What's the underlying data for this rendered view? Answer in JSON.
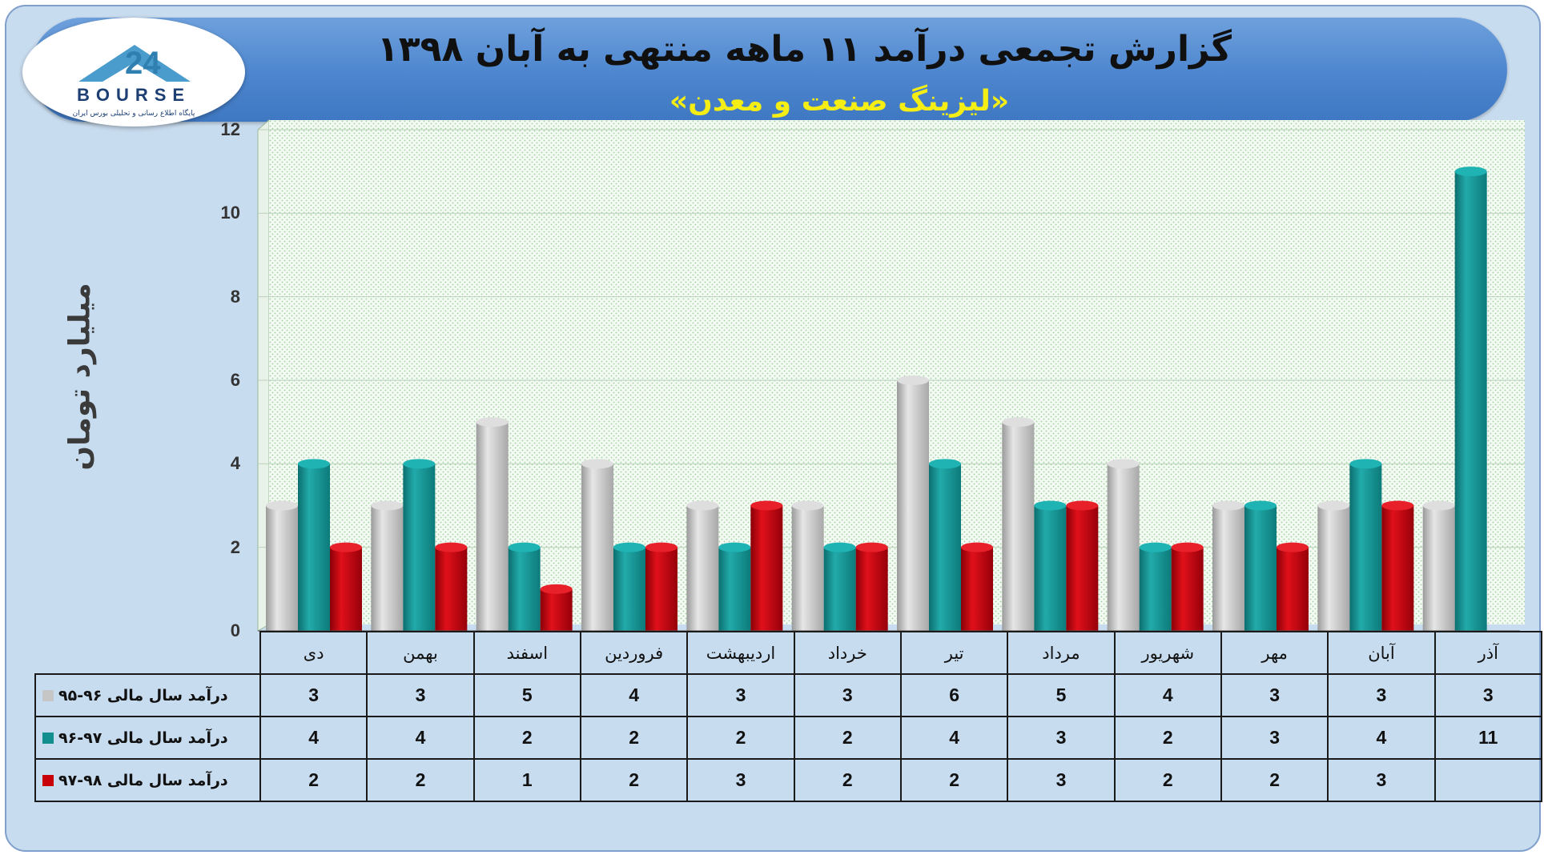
{
  "header": {
    "title": "گزارش تجمعی درآمد ۱۱ ماهه منتهی به آبان ۱۳۹۸",
    "subtitle": "«لیزینگ صنعت و معدن»"
  },
  "logo": {
    "text": "BOURSE",
    "caption": "پایگاه اطلاع رسانی و تحلیلی بورس ایران",
    "number": "24"
  },
  "colors": {
    "series1": "#c6c6c6",
    "series2": "#138f8f",
    "series3": "#c8000a",
    "plot_bg": "#f3faf3",
    "grid_dots": "#9fcf9f"
  },
  "chart_data": {
    "type": "bar",
    "ylabel": "میلیارد تومان",
    "ylim": [
      0,
      12
    ],
    "yticks": [
      0,
      2,
      4,
      6,
      8,
      10,
      12
    ],
    "categories": [
      "دی",
      "بهمن",
      "اسفند",
      "فروردین",
      "اردیبهشت",
      "خرداد",
      "تیر",
      "مرداد",
      "شهریور",
      "مهر",
      "آبان",
      "آذر"
    ],
    "series": [
      {
        "name": "درآمد سال مالی ۹۶-۹۵",
        "values": [
          3,
          3,
          5,
          4,
          3,
          3,
          6,
          5,
          4,
          3,
          3,
          3
        ]
      },
      {
        "name": "درآمد سال مالی ۹۷-۹۶",
        "values": [
          4,
          4,
          2,
          2,
          2,
          2,
          4,
          3,
          2,
          3,
          4,
          11
        ]
      },
      {
        "name": "درآمد سال مالی ۹۸-۹۷",
        "values": [
          2,
          2,
          1,
          2,
          3,
          2,
          2,
          3,
          2,
          2,
          3,
          null
        ]
      }
    ],
    "legend": "data-table-below",
    "grid": true
  }
}
